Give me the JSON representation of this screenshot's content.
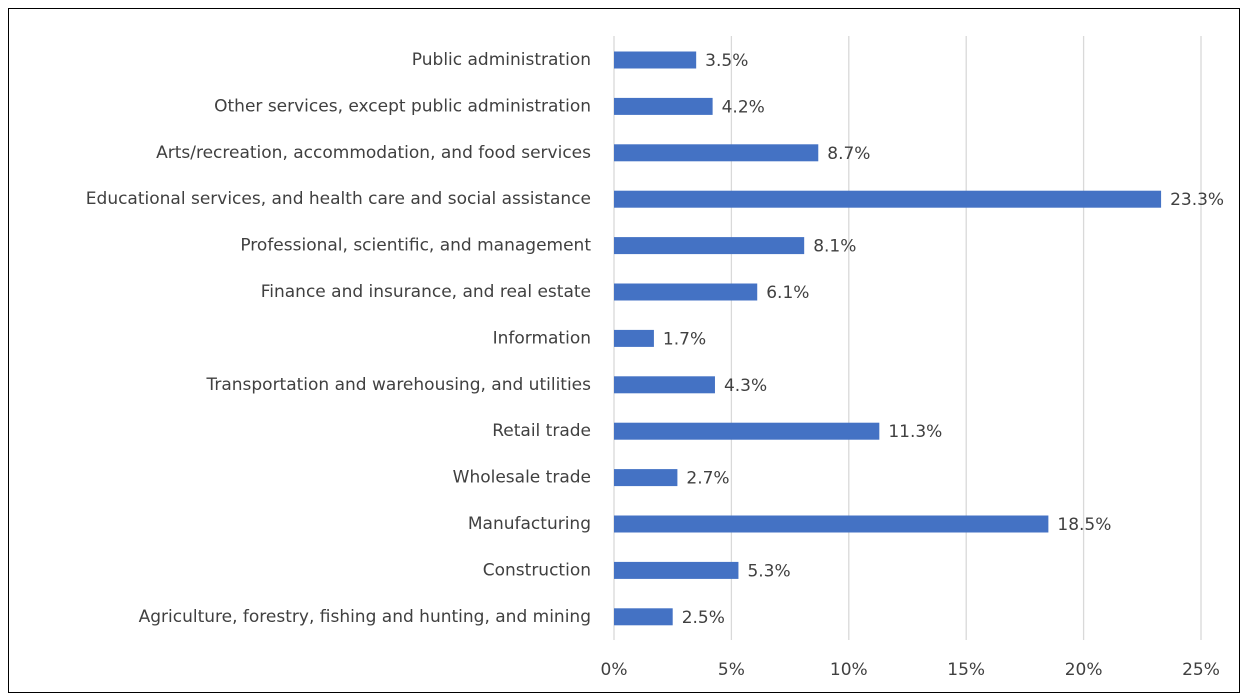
{
  "chart_data": {
    "type": "bar",
    "orientation": "horizontal",
    "categories": [
      "Public administration",
      "Other services, except public administration",
      "Arts/recreation, accommodation, and food services",
      "Educational services, and health care and social assistance",
      "Professional, scientific, and management",
      "Finance and insurance, and real estate",
      "Information",
      "Transportation and warehousing, and utilities",
      "Retail trade",
      "Wholesale trade",
      "Manufacturing",
      "Construction",
      "Agriculture, forestry, fishing and hunting, and mining"
    ],
    "values": [
      3.5,
      4.2,
      8.7,
      23.3,
      8.1,
      6.1,
      1.7,
      4.3,
      11.3,
      2.7,
      18.5,
      5.3,
      2.5
    ],
    "value_labels": [
      "3.5%",
      "4.2%",
      "8.7%",
      "23.3%",
      "8.1%",
      "6.1%",
      "1.7%",
      "4.3%",
      "11.3%",
      "2.7%",
      "18.5%",
      "5.3%",
      "2.5%"
    ],
    "x_ticks": [
      0,
      5,
      10,
      15,
      20,
      25
    ],
    "x_tick_labels": [
      "0%",
      "5%",
      "10%",
      "15%",
      "20%",
      "25%"
    ],
    "xlim": [
      0,
      25
    ],
    "title": "",
    "xlabel": "",
    "ylabel": "",
    "grid": "vertical",
    "legend": "none",
    "colors": {
      "bar": "#4472c4",
      "grid": "#d9d9d9",
      "text": "#404040",
      "border": "#000000"
    }
  }
}
